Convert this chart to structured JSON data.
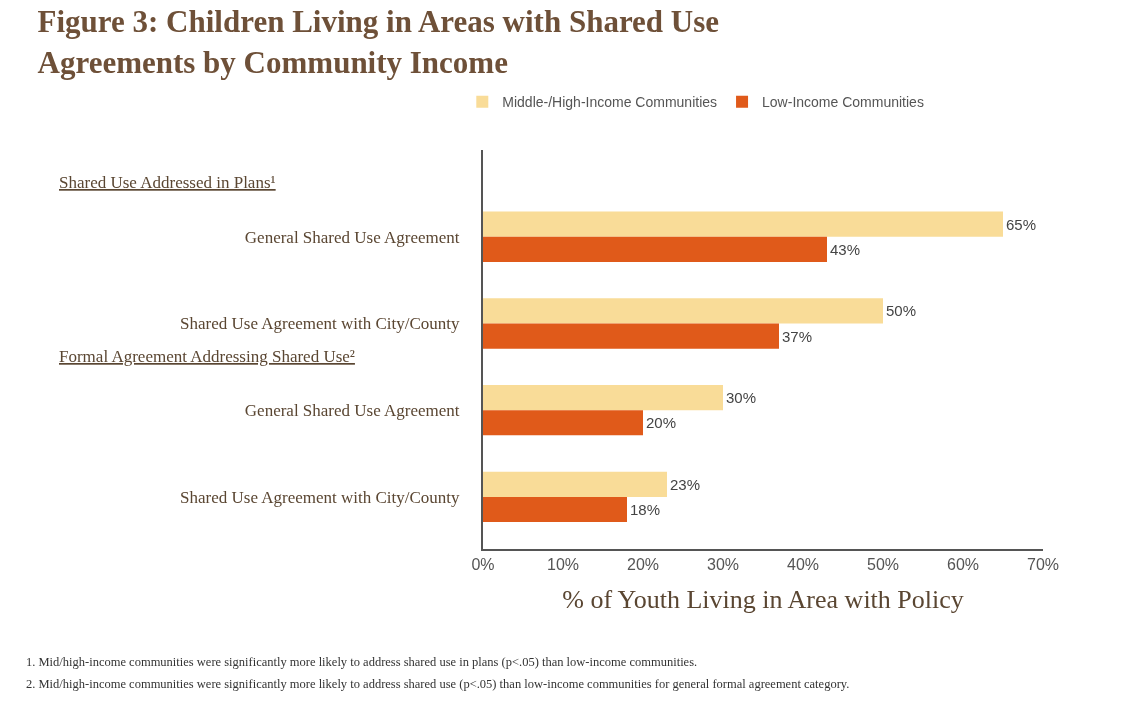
{
  "chart_data": {
    "type": "bar",
    "orientation": "horizontal",
    "title": "Figure 3: Children Living in Areas with Shared Use Agreements by Community Income",
    "xlabel": "% of Youth Living in Area with Policy",
    "categories": [
      "General Shared Use Agreement",
      "Shared Use Agreement with City/County",
      "General Shared Use Agreement",
      "Shared Use Agreement with City/County"
    ],
    "series": [
      {
        "name": "Middle-/High-Income Communities",
        "color": "#f9dc98",
        "values": [
          65,
          50,
          30,
          23
        ],
        "value_labels": [
          "65%",
          "50%",
          "30%",
          "23%"
        ]
      },
      {
        "name": "Low-Income Communities",
        "color": "#e05a1a",
        "values": [
          43,
          37,
          20,
          18
        ],
        "value_labels": [
          "43%",
          "37%",
          "20%",
          "18%"
        ]
      }
    ],
    "xlim": [
      0,
      70
    ],
    "xticks": [
      {
        "value": 0,
        "label": "0%"
      },
      {
        "value": 10,
        "label": "10%"
      },
      {
        "value": 20,
        "label": "20%"
      },
      {
        "value": 30,
        "label": "30%"
      },
      {
        "value": 40,
        "label": "40%"
      },
      {
        "value": 50,
        "label": "50%"
      },
      {
        "value": 60,
        "label": "60%"
      },
      {
        "value": 70,
        "label": "70%"
      }
    ],
    "grid": false,
    "legend": "top",
    "annotations": [
      "Shared Use Addressed in Plans¹",
      "Formal Agreement Addressing Shared Use²",
      "1. Mid/high-income communities were significantly more likely to address shared use in plans (p<.05) than low-income communities.",
      "2. Mid/high-income communities were significantly more likely to address shared use (p<.05) than low-income communities for general formal agreement category."
    ]
  }
}
